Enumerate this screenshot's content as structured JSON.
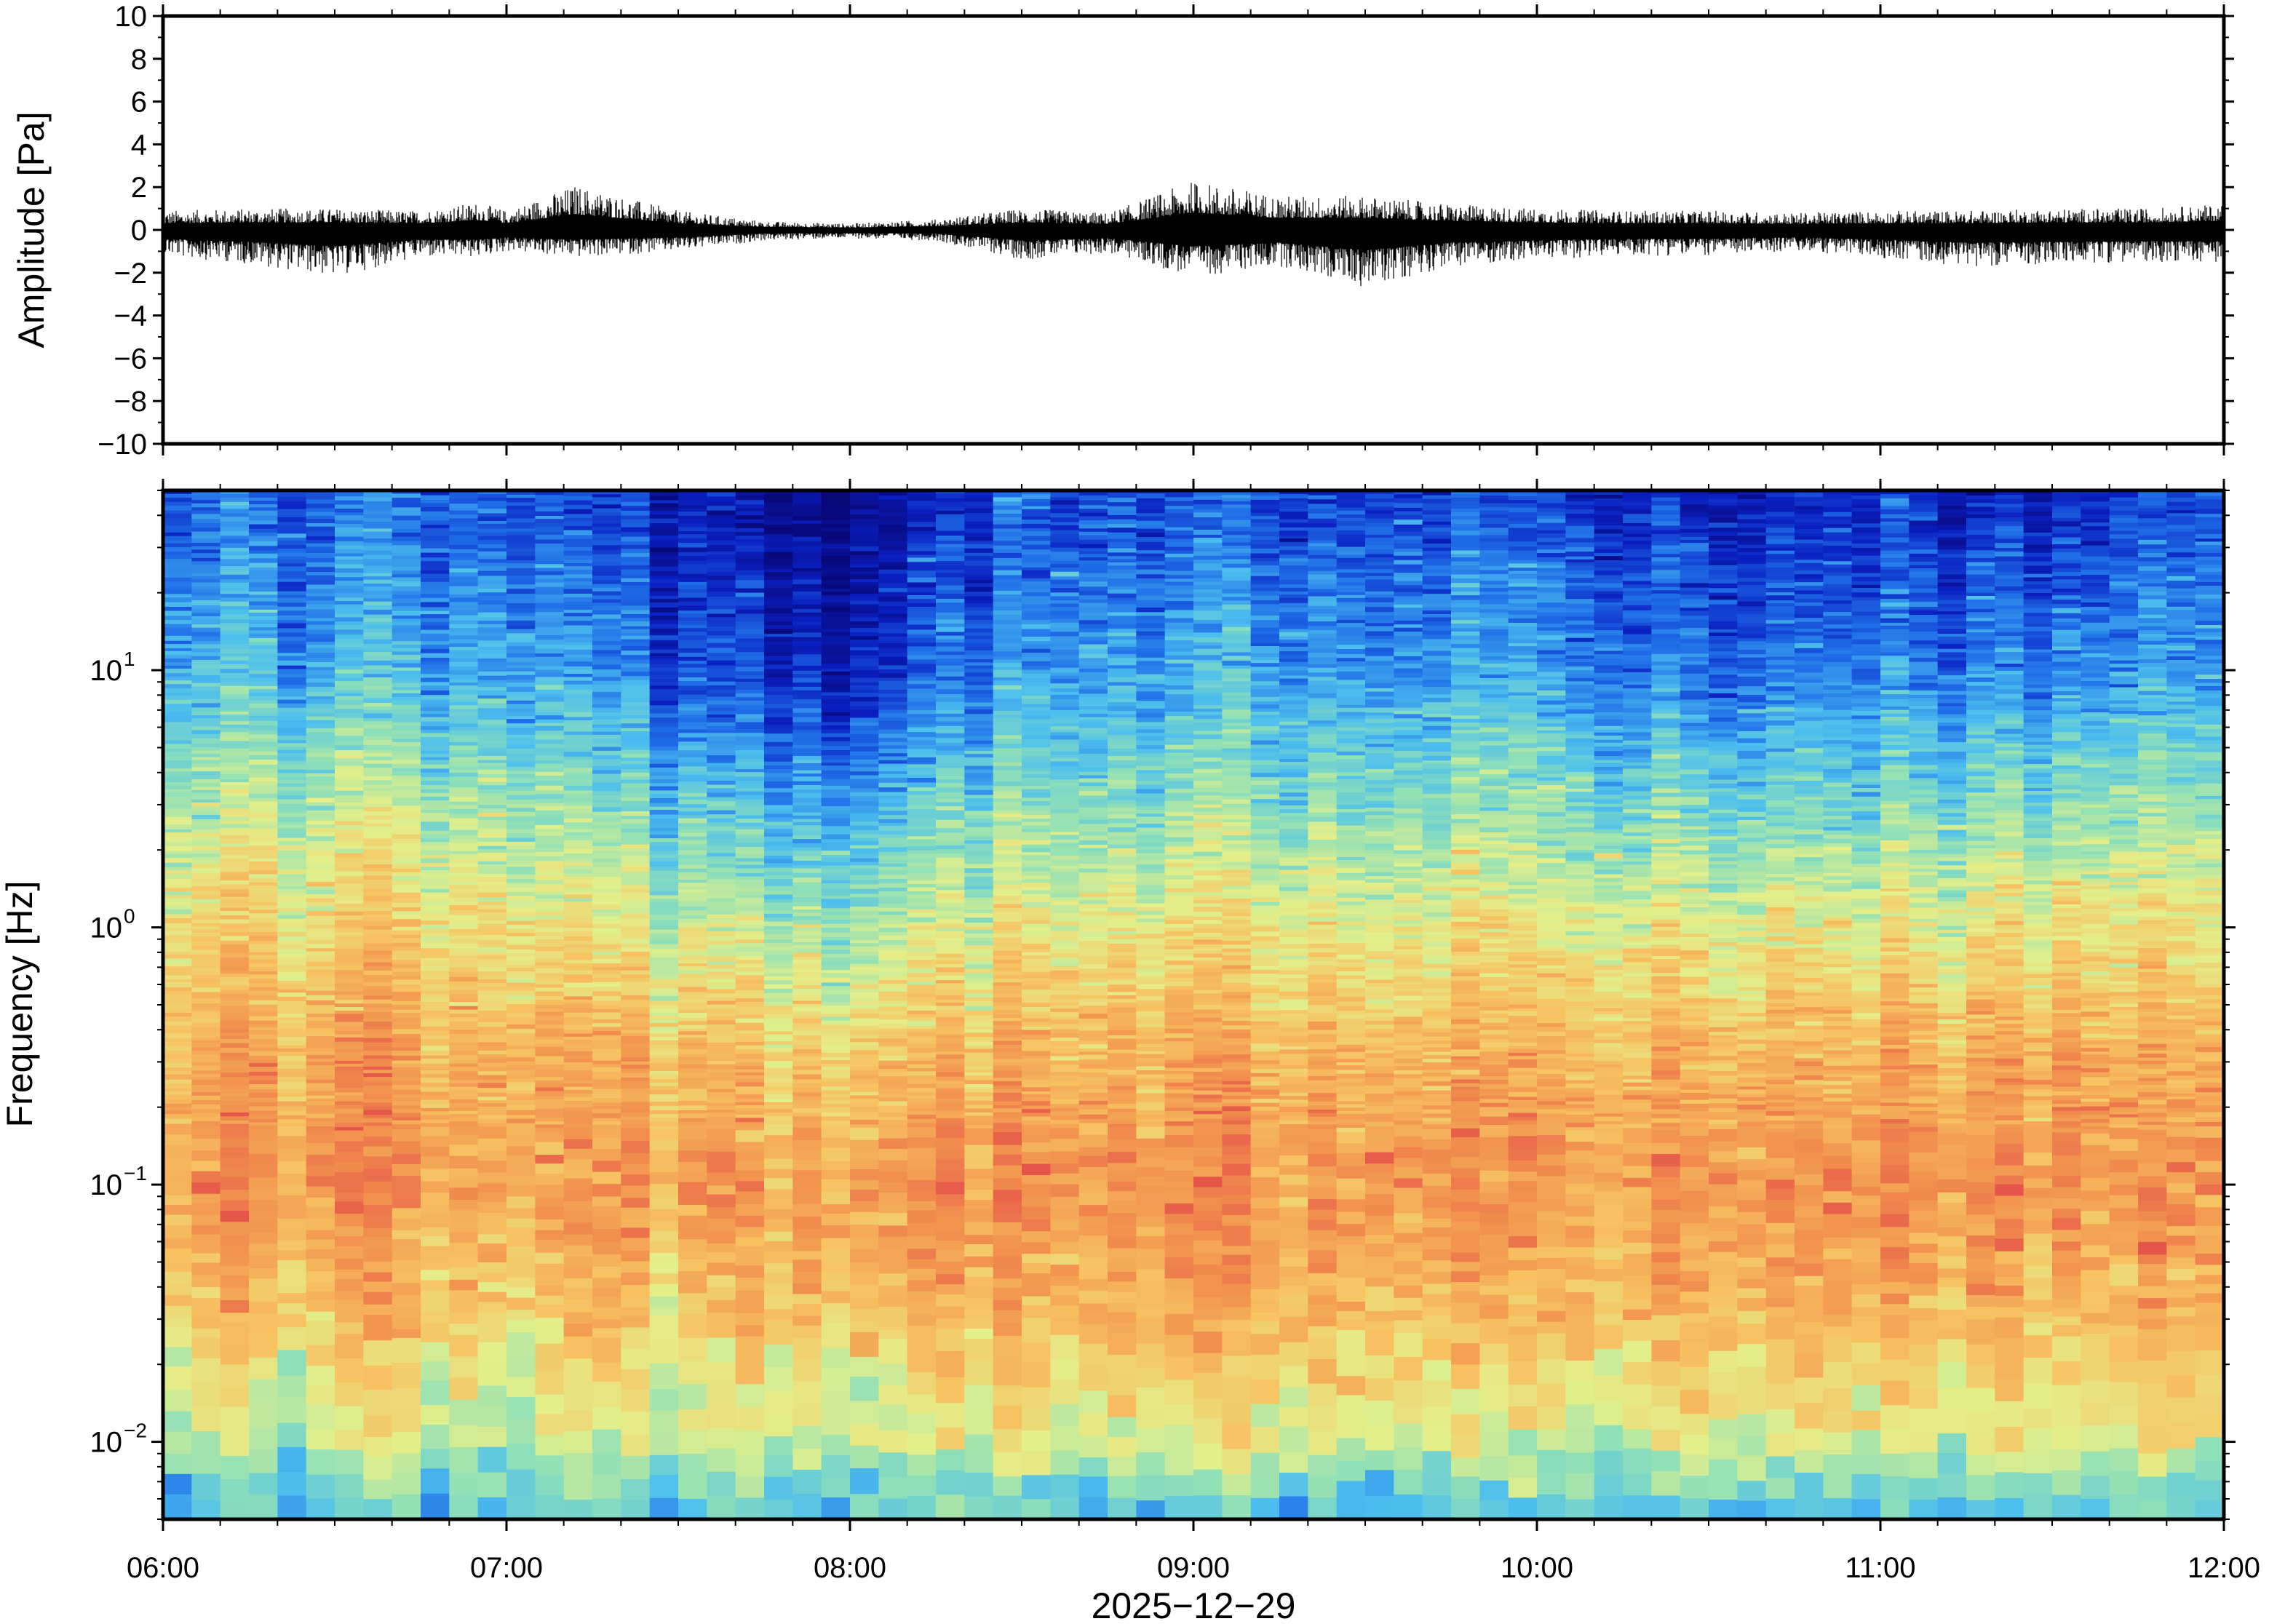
{
  "chart_data": [
    {
      "type": "line",
      "panel": "waveform",
      "title": "",
      "ylabel": "Amplitude [Pa]",
      "xlabel": "",
      "ylim": [
        -10,
        10
      ],
      "yticks": [
        -10,
        -8,
        -6,
        -4,
        -2,
        0,
        2,
        4,
        6,
        8,
        10
      ],
      "ytick_labels": [
        "−10",
        "−8",
        "−6",
        "−4",
        "−2",
        "0",
        "2",
        "4",
        "6",
        "8",
        "10"
      ],
      "xlim": [
        "06:00",
        "12:00"
      ],
      "series": [
        {
          "x": [
            "06:00",
            "06:15",
            "06:30",
            "06:45",
            "06:55",
            "07:00",
            "07:12",
            "07:30",
            "07:45",
            "08:00",
            "08:15",
            "08:30",
            "08:45",
            "09:00",
            "09:15",
            "09:30",
            "09:45",
            "10:00",
            "10:15",
            "10:30",
            "10:45",
            "11:00",
            "11:15",
            "11:30",
            "11:45",
            "12:00"
          ],
          "envelope_max": [
            0.9,
            1.0,
            1.0,
            0.9,
            1.3,
            0.9,
            2.1,
            0.9,
            0.4,
            0.3,
            0.5,
            1.0,
            0.8,
            2.3,
            1.6,
            1.6,
            1.2,
            1.0,
            0.9,
            0.9,
            0.8,
            0.9,
            0.9,
            1.0,
            1.0,
            1.2
          ],
          "envelope_min": [
            -1.2,
            -1.6,
            -2.2,
            -1.3,
            -1.3,
            -1.0,
            -1.3,
            -1.0,
            -0.5,
            -0.4,
            -0.5,
            -1.4,
            -1.1,
            -2.2,
            -1.7,
            -2.7,
            -1.7,
            -1.4,
            -1.2,
            -1.2,
            -1.0,
            -1.3,
            -1.7,
            -1.6,
            -1.5,
            -1.5
          ],
          "color": "#000000"
        }
      ]
    },
    {
      "type": "heatmap",
      "panel": "spectrogram",
      "title": "",
      "ylabel": "Frequency [Hz]",
      "xlabel": "2025−12−29",
      "yscale": "log",
      "ylim": [
        0.005,
        50
      ],
      "yticks": [
        0.01,
        0.1,
        1,
        10
      ],
      "ytick_labels": [
        {
          "base": "10",
          "exp": "−2"
        },
        {
          "base": "10",
          "exp": "−1"
        },
        {
          "base": "10",
          "exp": "0"
        },
        {
          "base": "10",
          "exp": "1"
        }
      ],
      "x_tick_labels": [
        "06:00",
        "07:00",
        "08:00",
        "09:00",
        "10:00",
        "11:00",
        "12:00"
      ],
      "colormap": [
        "#08087a",
        "#0a1fc0",
        "#1f6ee8",
        "#4dbfee",
        "#8fe0b8",
        "#e3ef8a",
        "#f7c262",
        "#f2934e",
        "#e6554a"
      ],
      "log10_freq_levels": [
        -2.3,
        -2,
        -1.5,
        -1,
        -0.5,
        0,
        0.5,
        1,
        1.7
      ],
      "time_rows": [
        "06:00",
        "06:30",
        "07:00",
        "07:30",
        "08:00",
        "08:30",
        "09:00",
        "09:30",
        "10:00",
        "10:30",
        "11:00",
        "11:30",
        "12:00"
      ],
      "relative_power": [
        [
          0.4,
          0.58,
          0.74,
          0.86,
          0.82,
          0.7,
          0.56,
          0.38,
          0.26
        ],
        [
          0.42,
          0.6,
          0.76,
          0.88,
          0.84,
          0.72,
          0.56,
          0.36,
          0.22
        ],
        [
          0.44,
          0.62,
          0.76,
          0.86,
          0.82,
          0.7,
          0.56,
          0.38,
          0.24
        ],
        [
          0.42,
          0.6,
          0.74,
          0.84,
          0.76,
          0.58,
          0.4,
          0.2,
          0.1
        ],
        [
          0.44,
          0.62,
          0.78,
          0.86,
          0.74,
          0.56,
          0.34,
          0.14,
          0.04
        ],
        [
          0.4,
          0.62,
          0.78,
          0.86,
          0.78,
          0.62,
          0.46,
          0.3,
          0.18
        ],
        [
          0.42,
          0.64,
          0.8,
          0.88,
          0.8,
          0.66,
          0.5,
          0.34,
          0.2
        ],
        [
          0.4,
          0.64,
          0.8,
          0.88,
          0.8,
          0.66,
          0.5,
          0.34,
          0.2
        ],
        [
          0.42,
          0.62,
          0.78,
          0.86,
          0.8,
          0.66,
          0.5,
          0.34,
          0.2
        ],
        [
          0.42,
          0.62,
          0.78,
          0.86,
          0.78,
          0.62,
          0.44,
          0.24,
          0.1
        ],
        [
          0.4,
          0.64,
          0.8,
          0.88,
          0.8,
          0.64,
          0.46,
          0.28,
          0.14
        ],
        [
          0.42,
          0.66,
          0.8,
          0.88,
          0.82,
          0.68,
          0.5,
          0.3,
          0.12
        ],
        [
          0.44,
          0.66,
          0.8,
          0.86,
          0.8,
          0.66,
          0.52,
          0.34,
          0.22
        ]
      ]
    }
  ]
}
